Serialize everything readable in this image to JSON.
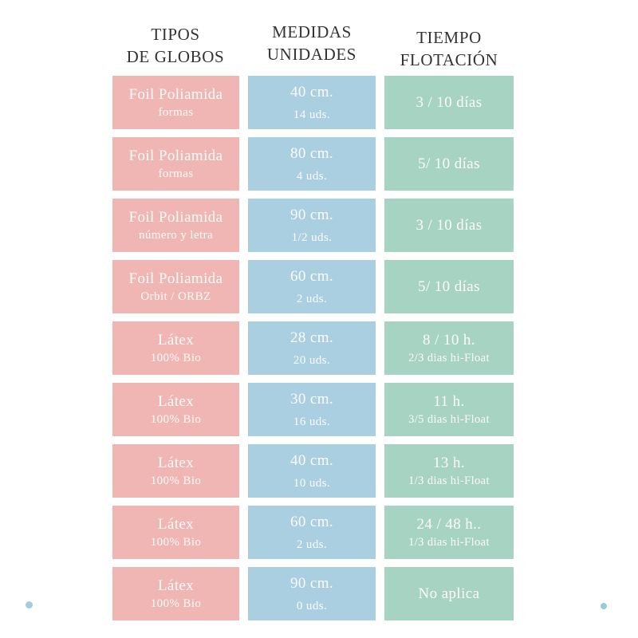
{
  "colors": {
    "pink": "#f0b6b4",
    "blue": "#a9cfe0",
    "green": "#a7d4c2",
    "header_text": "#333333",
    "cell_text": "#fdfbfa",
    "dot_left": "#a5cbdd",
    "dot_right": "#9bccd4"
  },
  "decorations": {
    "dot_left": "small light-blue dot, bottom-left corner",
    "dot_right": "small light-blue dot, bottom-right corner"
  },
  "chart_data": {
    "type": "table",
    "title": "Tipos de globos, medidas y tiempo de flotación",
    "columns": [
      {
        "id": "tipos",
        "header_lines": [
          "TIPOS",
          "DE GLOBOS"
        ]
      },
      {
        "id": "medidas",
        "header_lines": [
          "MEDIDAS",
          "UNIDADES"
        ]
      },
      {
        "id": "tiempo",
        "header_lines": [
          "TIEMPO",
          "FLOTACIÓN"
        ]
      }
    ],
    "rows": [
      {
        "cells": [
          [
            "Foil Poliamida",
            "formas"
          ],
          [
            "40 cm.",
            "14 uds."
          ],
          [
            "3 / 10 días"
          ]
        ]
      },
      {
        "cells": [
          [
            "Foil Poliamida",
            "formas"
          ],
          [
            "80 cm.",
            "4 uds."
          ],
          [
            "5/ 10 días"
          ]
        ]
      },
      {
        "cells": [
          [
            "Foil Poliamida",
            "número y letra"
          ],
          [
            "90 cm.",
            "1/2 uds."
          ],
          [
            "3 / 10 días"
          ]
        ]
      },
      {
        "cells": [
          [
            "Foil Poliamida",
            "Orbit / ORBZ"
          ],
          [
            "60 cm.",
            "2 uds."
          ],
          [
            "5/ 10 días"
          ]
        ]
      },
      {
        "cells": [
          [
            "Látex",
            "100% Bio"
          ],
          [
            "28 cm.",
            "20 uds."
          ],
          [
            "8 / 10 h.",
            "2/3 dias hi-Float"
          ]
        ]
      },
      {
        "cells": [
          [
            "Látex",
            "100% Bio"
          ],
          [
            "30 cm.",
            "16 uds."
          ],
          [
            "11 h.",
            "3/5 dias hi-Float"
          ]
        ]
      },
      {
        "cells": [
          [
            "Látex",
            "100% Bio"
          ],
          [
            "40 cm.",
            "10 uds."
          ],
          [
            "13 h.",
            "1/3 dias hi-Float"
          ]
        ]
      },
      {
        "cells": [
          [
            "Látex",
            "100% Bio"
          ],
          [
            "60 cm.",
            "2 uds."
          ],
          [
            "24 / 48 h..",
            "1/3 dias hi-Float"
          ]
        ]
      },
      {
        "cells": [
          [
            "Látex",
            "100% Bio"
          ],
          [
            "90 cm.",
            "0 uds."
          ],
          [
            "No aplica"
          ]
        ]
      }
    ]
  }
}
